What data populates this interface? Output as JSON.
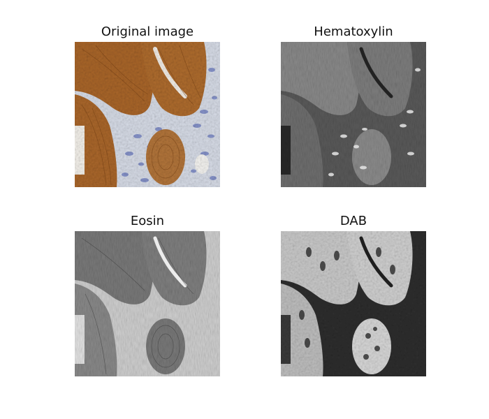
{
  "panels": [
    {
      "title": "Original image",
      "image": "original-stain-image"
    },
    {
      "title": "Hematoxylin",
      "image": "hematoxylin-channel-image"
    },
    {
      "title": "Eosin",
      "image": "eosin-channel-image"
    },
    {
      "title": "DAB",
      "image": "dab-channel-image"
    }
  ],
  "colors": {
    "brown": "#a8662a",
    "stroma": "#d9dde6",
    "nuclei_blue": "#7f8cc4",
    "gray_bg": "#444444"
  }
}
